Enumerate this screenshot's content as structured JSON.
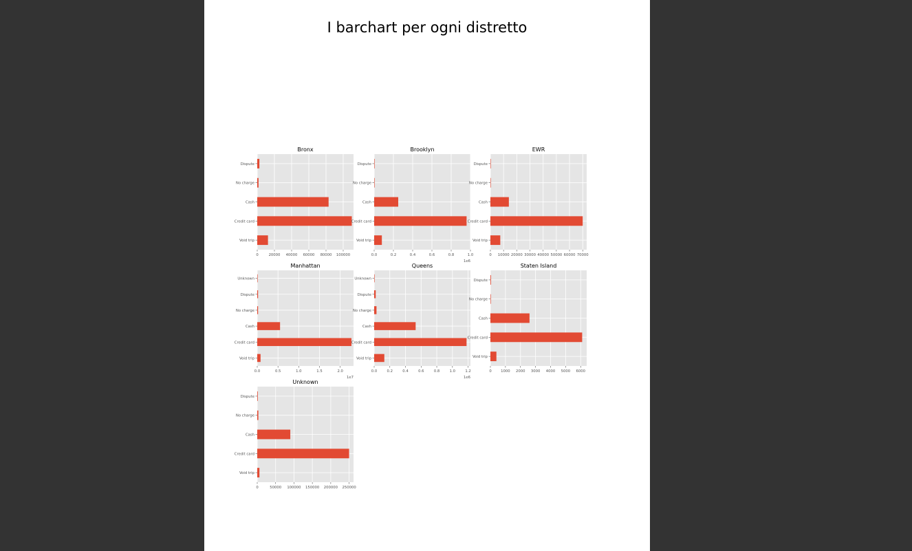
{
  "page": {
    "title": "I barchart per ogni distretto",
    "background": "#333333",
    "page_color": "#ffffff"
  },
  "colors": {
    "bar": "#E24A33",
    "panel": "#E5E5E5",
    "grid": "#FFFFFF",
    "text": "#555555"
  },
  "chart_data": [
    {
      "type": "bar",
      "orientation": "horizontal",
      "title": "Bronx",
      "categories": [
        "Dispute",
        "No charge",
        "Cash",
        "Credit card",
        "Void trip"
      ],
      "values": [
        2500,
        1500,
        83000,
        110000,
        12500
      ],
      "xlim": [
        0,
        112000
      ],
      "xticks": [
        0,
        20000,
        40000,
        60000,
        80000,
        100000
      ],
      "xtick_labels": [
        "0",
        "20000",
        "40000",
        "60000",
        "80000",
        "100000"
      ],
      "offset_label": ""
    },
    {
      "type": "bar",
      "orientation": "horizontal",
      "title": "Brooklyn",
      "categories": [
        "Dispute",
        "No charge",
        "Cash",
        "Credit card",
        "Void trip"
      ],
      "values": [
        0.004,
        0.003,
        0.25,
        0.96,
        0.08
      ],
      "xlim": [
        0,
        1.0
      ],
      "xticks": [
        0,
        0.2,
        0.4,
        0.6,
        0.8,
        1.0
      ],
      "xtick_labels": [
        "0.0",
        "0.2",
        "0.4",
        "0.6",
        "0.8",
        "1.0"
      ],
      "offset_label": "1e6"
    },
    {
      "type": "bar",
      "orientation": "horizontal",
      "title": "EWR",
      "categories": [
        "Dispute",
        "No charge",
        "Cash",
        "Credit card",
        "Void trip"
      ],
      "values": [
        200,
        150,
        14000,
        70000,
        7500
      ],
      "xlim": [
        0,
        73000
      ],
      "xticks": [
        0,
        10000,
        20000,
        30000,
        40000,
        50000,
        60000,
        70000
      ],
      "xtick_labels": [
        "0",
        "10000",
        "20000",
        "30000",
        "40000",
        "50000",
        "60000",
        "70000"
      ],
      "offset_label": ""
    },
    {
      "type": "bar",
      "orientation": "horizontal",
      "title": "Manhattan",
      "categories": [
        "Unknown",
        "Dispute",
        "No charge",
        "Cash",
        "Credit card",
        "Void trip"
      ],
      "values": [
        0.005,
        0.02,
        0.02,
        0.55,
        2.27,
        0.08
      ],
      "xlim": [
        0,
        2.32
      ],
      "xticks": [
        0,
        0.5,
        1.0,
        1.5,
        2.0
      ],
      "xtick_labels": [
        "0.0",
        "0.5",
        "1.0",
        "1.5",
        "2.0"
      ],
      "offset_label": "1e7"
    },
    {
      "type": "bar",
      "orientation": "horizontal",
      "title": "Queens",
      "categories": [
        "Unknown",
        "Dispute",
        "No charge",
        "Cash",
        "Credit card",
        "Void trip"
      ],
      "values": [
        0.004,
        0.02,
        0.03,
        0.53,
        1.18,
        0.13
      ],
      "xlim": [
        0,
        1.23
      ],
      "xticks": [
        0,
        0.2,
        0.4,
        0.6,
        0.8,
        1.0,
        1.2
      ],
      "xtick_labels": [
        "0.0",
        "0.2",
        "0.4",
        "0.6",
        "0.8",
        "1.0",
        "1.2"
      ],
      "offset_label": "1e6"
    },
    {
      "type": "bar",
      "orientation": "horizontal",
      "title": "Staten Island",
      "categories": [
        "Dispute",
        "No charge",
        "Cash",
        "Credit card",
        "Void trip"
      ],
      "values": [
        40,
        30,
        2600,
        6100,
        400
      ],
      "xlim": [
        0,
        6400
      ],
      "xticks": [
        0,
        1000,
        2000,
        3000,
        4000,
        5000,
        6000
      ],
      "xtick_labels": [
        "0",
        "1000",
        "2000",
        "3000",
        "4000",
        "5000",
        "6000"
      ],
      "offset_label": ""
    },
    {
      "type": "bar",
      "orientation": "horizontal",
      "title": "Unknown",
      "categories": [
        "Dispute",
        "No charge",
        "Cash",
        "Credit card",
        "Void trip"
      ],
      "values": [
        1500,
        3000,
        90000,
        250000,
        6000
      ],
      "xlim": [
        0,
        262000
      ],
      "xticks": [
        0,
        50000,
        100000,
        150000,
        200000,
        250000
      ],
      "xtick_labels": [
        "0",
        "50000",
        "100000",
        "150000",
        "200000",
        "250000"
      ],
      "offset_label": ""
    }
  ]
}
